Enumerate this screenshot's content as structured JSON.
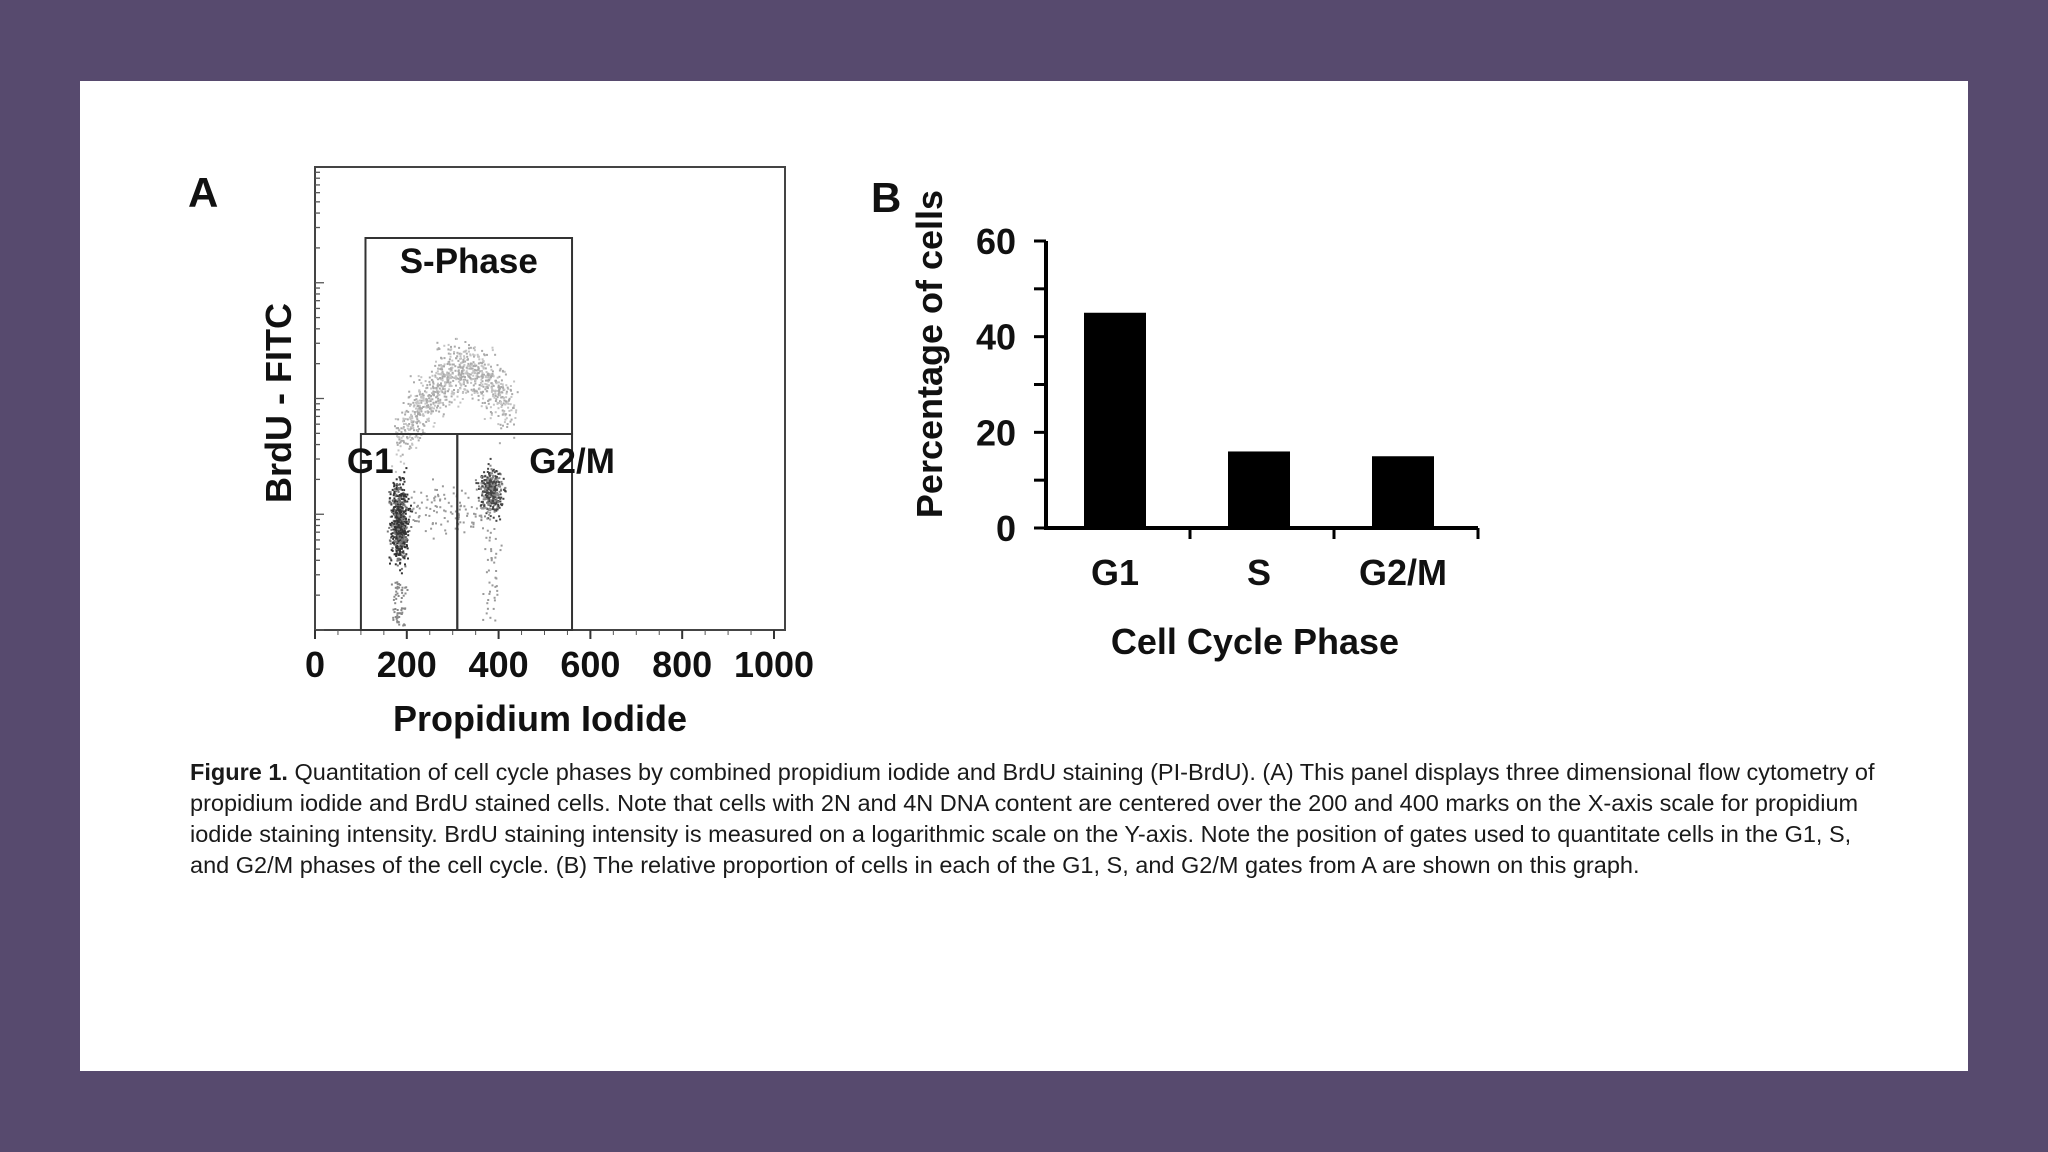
{
  "caption": {
    "label": "Figure 1.",
    "text": " Quantitation of cell cycle phases by combined propidium iodide and BrdU staining (PI-BrdU). (A) This panel displays three dimensional flow cytometry of propidium iodide and BrdU stained cells. Note that cells with 2N and 4N DNA content are centered over the 200 and 400 marks on the X-axis scale for propidium iodide staining intensity. BrdU staining intensity is measured on a logarithmic scale on the Y-axis. Note the position of gates used to quantitate cells in the G1, S, and G2/M phases of the cell cycle. (B) The relative proportion of cells in each of the G1, S, and G2/M gates from A are shown on this graph."
  },
  "chart_data": [
    {
      "panel": "A",
      "type": "scatter",
      "xlabel": "Propidium Iodide",
      "ylabel": "BrdU - FITC",
      "xticks": [
        0,
        200,
        400,
        600,
        800,
        1000
      ],
      "xlim": [
        0,
        1024
      ],
      "y_scale": "log",
      "grid": false,
      "gates": [
        {
          "label": "S-Phase",
          "x_range": [
            110,
            560
          ]
        },
        {
          "label": "G1",
          "x_range": [
            100,
            310
          ]
        },
        {
          "label": "G2/M",
          "x_range": [
            310,
            560
          ]
        }
      ],
      "populations": [
        {
          "name": "G1",
          "x_center": 200
        },
        {
          "name": "G2/M",
          "x_center": 400
        },
        {
          "name": "S-Phase",
          "x_range": [
            200,
            400
          ]
        }
      ]
    },
    {
      "panel": "B",
      "type": "bar",
      "categories": [
        "G1",
        "S",
        "G2/M"
      ],
      "values": [
        45,
        16,
        15
      ],
      "xlabel": "Cell Cycle Phase",
      "ylabel": "Percentage of cells",
      "ylim": [
        0,
        60
      ],
      "yticks": [
        0,
        20,
        40,
        60
      ],
      "grid": false,
      "color": "#000000"
    }
  ]
}
